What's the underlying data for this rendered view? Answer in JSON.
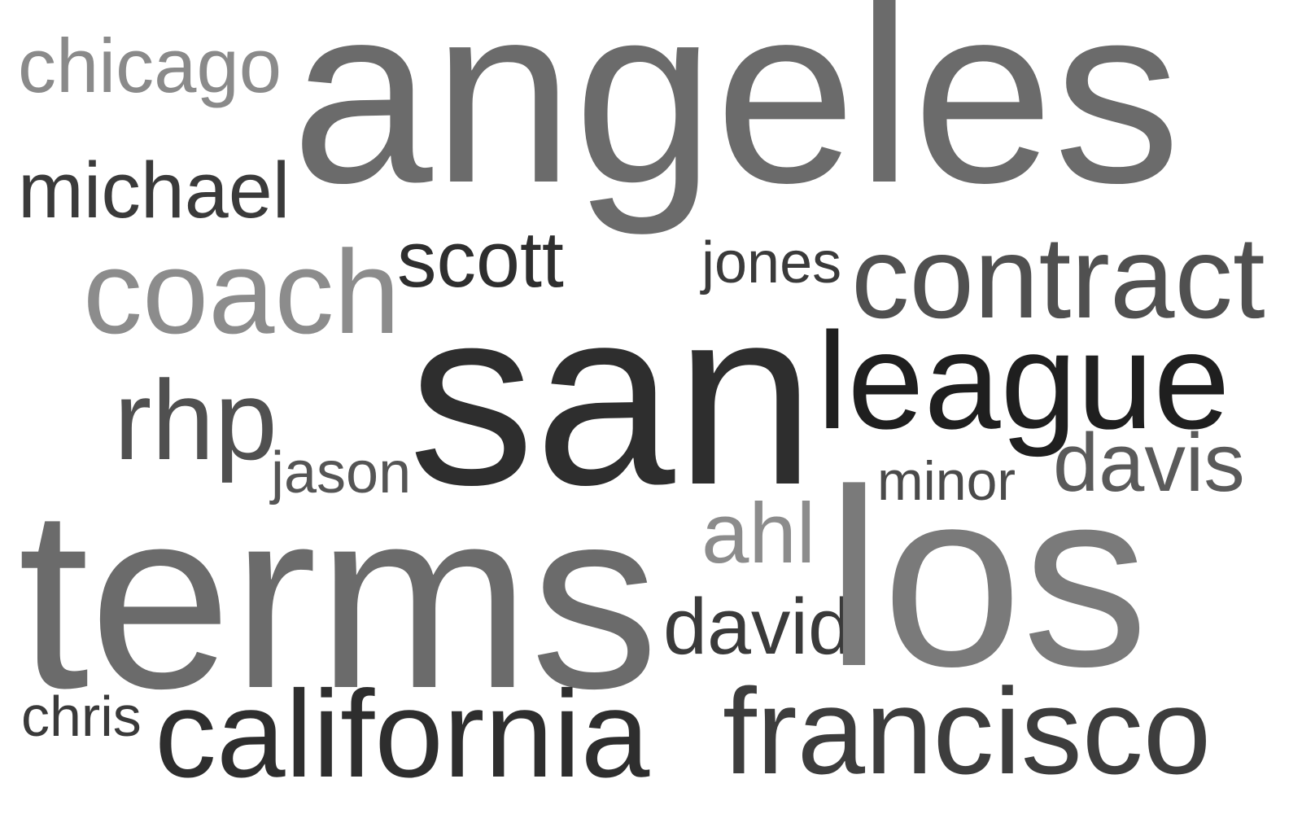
{
  "colors": {
    "background": "#ffffff",
    "darkest": "#2b2b2b",
    "dark": "#3d3d3d",
    "mid_dark": "#505050",
    "mid": "#6b6b6b",
    "light": "#7a7a7a",
    "lighter": "#8c8c8c"
  },
  "words": {
    "angeles": {
      "text": "angeles",
      "color": "#6b6b6b"
    },
    "chicago": {
      "text": "chicago",
      "color": "#8a8a8a"
    },
    "michael": {
      "text": "michael",
      "color": "#3a3a3a"
    },
    "coach": {
      "text": "coach",
      "color": "#8c8c8c"
    },
    "scott": {
      "text": "scott",
      "color": "#2e2e2e"
    },
    "jones": {
      "text": "jones",
      "color": "#3a3a3a"
    },
    "contract": {
      "text": "contract",
      "color": "#505050"
    },
    "rhp": {
      "text": "rhp",
      "color": "#505050"
    },
    "san": {
      "text": "san",
      "color": "#2e2e2e"
    },
    "league": {
      "text": "league",
      "color": "#1f1f1f"
    },
    "jason": {
      "text": "jason",
      "color": "#555555"
    },
    "minor": {
      "text": "minor",
      "color": "#4a4a4a"
    },
    "davis": {
      "text": "davis",
      "color": "#5a5a5a"
    },
    "terms": {
      "text": "terms",
      "color": "#6b6b6b"
    },
    "ahl": {
      "text": "ahl",
      "color": "#8c8c8c"
    },
    "david": {
      "text": "david",
      "color": "#3a3a3a"
    },
    "los": {
      "text": "los",
      "color": "#7a7a7a"
    },
    "chris": {
      "text": "chris",
      "color": "#3a3a3a"
    },
    "california": {
      "text": "california",
      "color": "#2e2e2e"
    },
    "francisco": {
      "text": "francisco",
      "color": "#3d3d3d"
    }
  }
}
